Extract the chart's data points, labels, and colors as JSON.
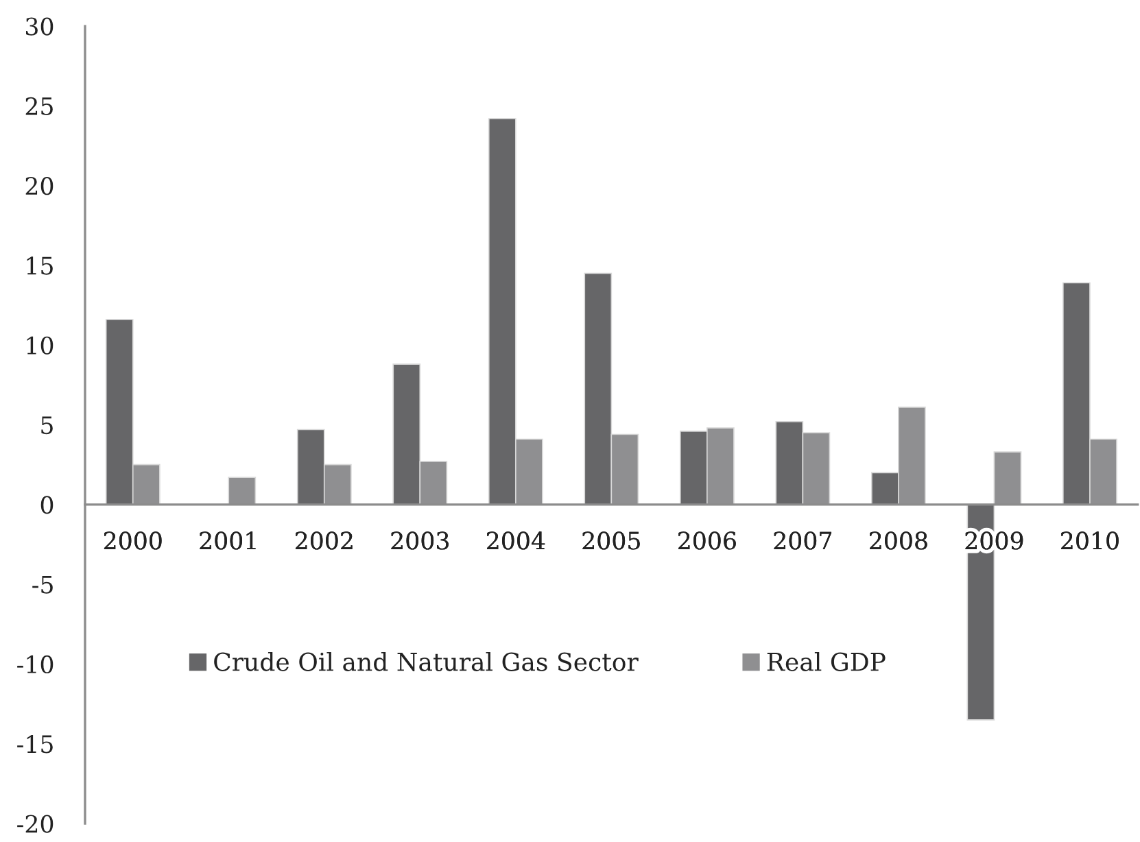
{
  "chart_data": {
    "type": "bar",
    "categories": [
      "2000",
      "2001",
      "2002",
      "2003",
      "2004",
      "2005",
      "2006",
      "2007",
      "2008",
      "2009",
      "2010"
    ],
    "series": [
      {
        "name": "Crude Oil and Natural Gas Sector",
        "color": "#666668",
        "values": [
          11.6,
          null,
          4.7,
          8.8,
          24.2,
          14.5,
          4.6,
          5.2,
          2.0,
          -13.5,
          13.9
        ]
      },
      {
        "name": "Real GDP",
        "color": "#8f8f91",
        "values": [
          2.5,
          1.7,
          2.5,
          2.7,
          4.1,
          4.4,
          4.8,
          4.5,
          6.1,
          3.3,
          4.1
        ]
      }
    ],
    "ylim": [
      -20,
      30
    ],
    "yticks": [
      -20,
      -15,
      -10,
      -5,
      0,
      5,
      10,
      15,
      20,
      25,
      30
    ],
    "legend": "bottom"
  }
}
